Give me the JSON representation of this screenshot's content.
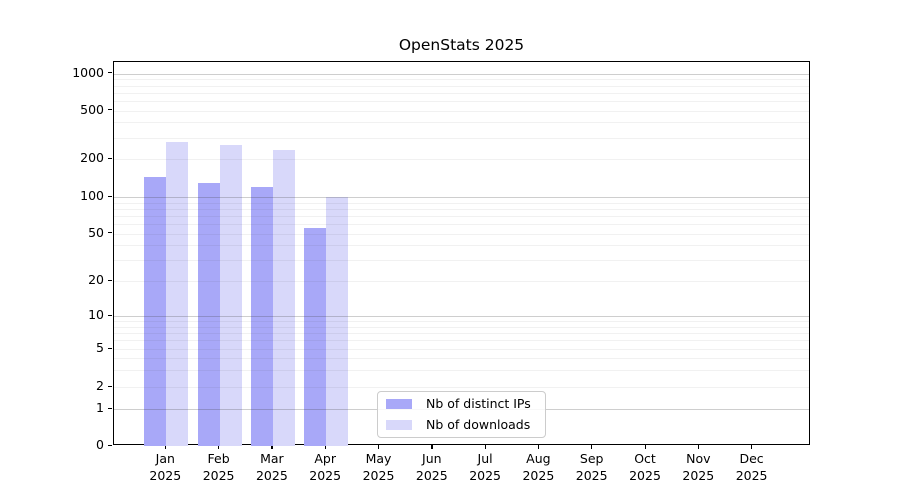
{
  "title": "OpenStats 2025",
  "chart_data": {
    "type": "bar",
    "title": "OpenStats 2025",
    "categories": [
      "Jan\n2025",
      "Feb\n2025",
      "Mar\n2025",
      "Apr\n2025",
      "May\n2025",
      "Jun\n2025",
      "Jul\n2025",
      "Aug\n2025",
      "Sep\n2025",
      "Oct\n2025",
      "Nov\n2025",
      "Dec\n2025"
    ],
    "series": [
      {
        "name": "Nb of distinct IPs",
        "color": "#a8a8f8",
        "values": [
          145,
          130,
          120,
          56,
          0,
          0,
          0,
          0,
          0,
          0,
          0,
          0
        ]
      },
      {
        "name": "Nb of downloads",
        "color": "#d8d8fa",
        "values": [
          275,
          262,
          238,
          100,
          0,
          0,
          0,
          0,
          0,
          0,
          0,
          0
        ]
      }
    ],
    "xlabel": "",
    "ylabel": "",
    "yticks": [
      1000,
      500,
      200,
      100,
      50,
      20,
      10,
      5,
      2,
      1,
      0
    ],
    "ytick_labels": [
      "1000",
      "500",
      "200",
      "100",
      "50",
      "20",
      "10",
      "5",
      "2",
      "1",
      "0"
    ],
    "yscale": "logarithmic above 1 with linear 0-1 segment at bottom",
    "ylim": [
      0,
      1240
    ],
    "grid": "horizontal major gridlines at 1000/100/10/1 and faint log minors, drawn over bars",
    "legend_position": "inside plot, bottom center",
    "colors": {
      "distinct_ips": "#a8a8f8",
      "downloads": "#d8d8fa",
      "grid_major": "#c4c4c4",
      "grid_minor": "#ededed",
      "axis": "#000000"
    }
  }
}
